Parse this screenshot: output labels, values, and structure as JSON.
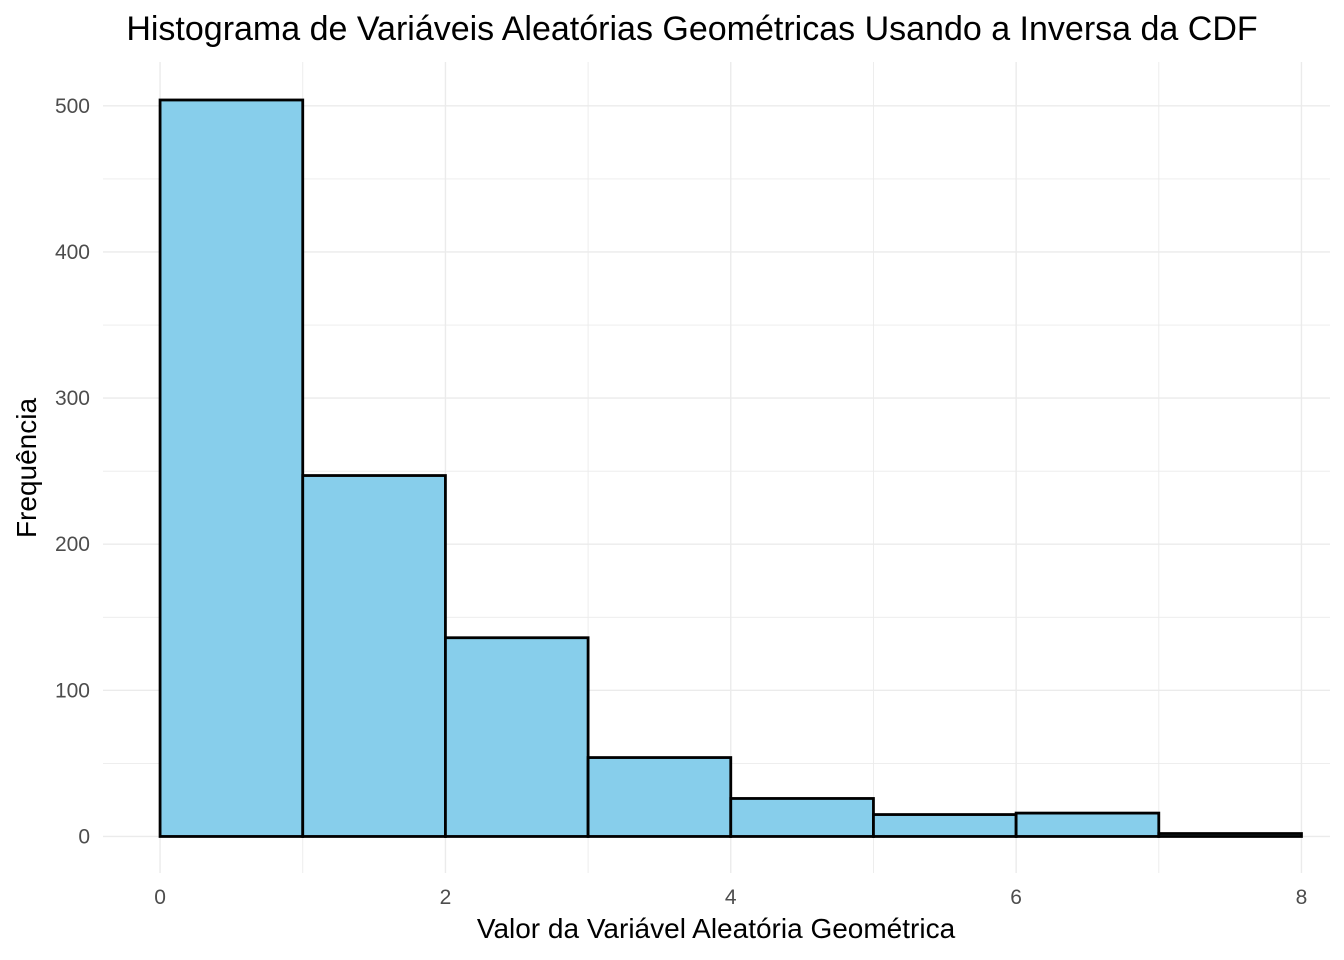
{
  "chart_data": {
    "type": "bar",
    "title": "Histograma de Variáveis Aleatórias Geométricas Usando a Inversa da CDF",
    "xlabel": "Valor da Variável Aleatória Geométrica",
    "ylabel": "Frequência",
    "bins": [
      {
        "x0": 0,
        "x1": 1,
        "count": 504
      },
      {
        "x0": 1,
        "x1": 2,
        "count": 247
      },
      {
        "x0": 2,
        "x1": 3,
        "count": 136
      },
      {
        "x0": 3,
        "x1": 4,
        "count": 54
      },
      {
        "x0": 4,
        "x1": 5,
        "count": 26
      },
      {
        "x0": 5,
        "x1": 6,
        "count": 15
      },
      {
        "x0": 6,
        "x1": 7,
        "count": 16
      },
      {
        "x0": 7,
        "x1": 8,
        "count": 2
      }
    ],
    "xlim": [
      -0.4,
      8.2
    ],
    "ylim": [
      -25,
      530
    ],
    "x_ticks": [
      "0",
      "2",
      "4",
      "6",
      "8"
    ],
    "y_ticks": [
      "0",
      "100",
      "200",
      "300",
      "400",
      "500"
    ],
    "x_tick_values": [
      0,
      2,
      4,
      6,
      8
    ],
    "y_tick_values": [
      0,
      100,
      200,
      300,
      400,
      500
    ],
    "x_minor_values": [
      1,
      3,
      5,
      7
    ],
    "y_minor_values": [
      50,
      150,
      250,
      350,
      450
    ],
    "grid": true,
    "legend": "none",
    "colors": {
      "fill": "#87ceeb",
      "outline": "#000000",
      "grid": "#ebebeb"
    }
  }
}
